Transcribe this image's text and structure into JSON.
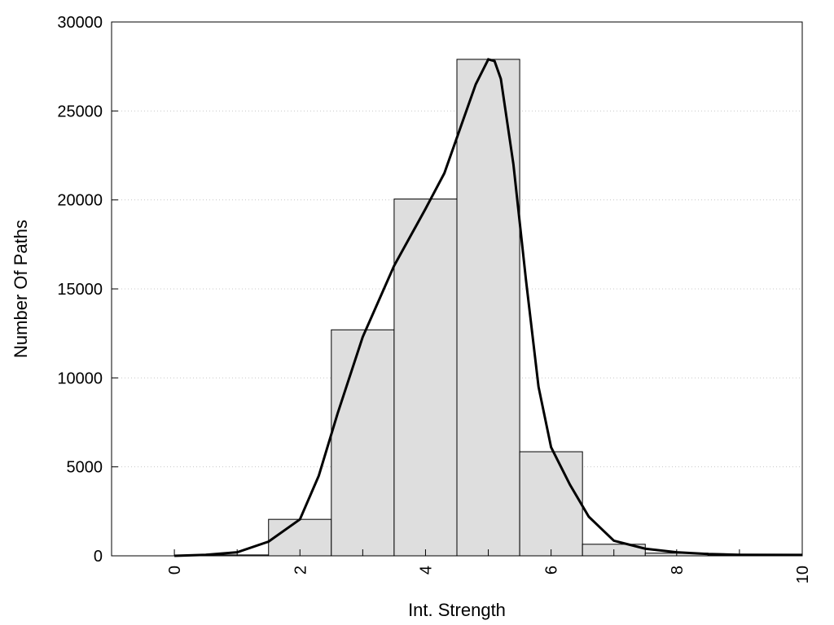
{
  "chart_data": {
    "type": "bar",
    "xlabel": "Int. Strength",
    "ylabel": "Number Of Paths",
    "xlim": [
      -1,
      10
    ],
    "ylim": [
      0,
      30000
    ],
    "x_ticks": [
      "0",
      "2",
      "4",
      "6",
      "8",
      "10"
    ],
    "y_ticks": [
      "0",
      "5000",
      "10000",
      "15000",
      "20000",
      "25000",
      "30000"
    ],
    "grid": "horizontal-dotted",
    "bar_width": 1,
    "bars": [
      {
        "x": 0,
        "value": 0
      },
      {
        "x": 1,
        "value": 50
      },
      {
        "x": 2,
        "value": 2050
      },
      {
        "x": 3,
        "value": 12700
      },
      {
        "x": 4,
        "value": 20050
      },
      {
        "x": 5,
        "value": 27900
      },
      {
        "x": 6,
        "value": 5850
      },
      {
        "x": 7,
        "value": 650
      },
      {
        "x": 8,
        "value": 150
      },
      {
        "x": 9,
        "value": 20
      },
      {
        "x": 10,
        "value": 0
      }
    ],
    "curve": {
      "x": [
        0,
        0.5,
        1,
        1.5,
        2,
        2.3,
        2.6,
        3,
        3.5,
        4,
        4.3,
        4.6,
        4.8,
        5,
        5.1,
        5.2,
        5.4,
        5.6,
        5.8,
        6,
        6.3,
        6.6,
        7,
        7.5,
        8,
        8.5,
        9,
        10
      ],
      "y": [
        0,
        60,
        200,
        800,
        2050,
        4500,
        8000,
        12300,
        16300,
        19500,
        21500,
        24500,
        26500,
        27900,
        27800,
        26800,
        22000,
        15500,
        9500,
        6100,
        4000,
        2200,
        850,
        400,
        200,
        100,
        60,
        50
      ]
    }
  }
}
